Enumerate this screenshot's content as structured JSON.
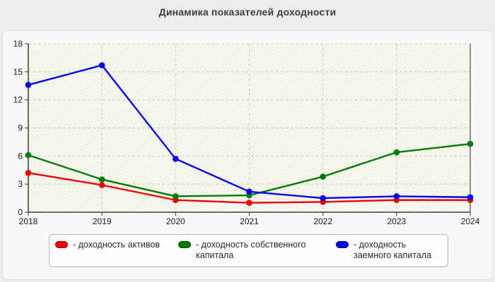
{
  "title": "Динамика показателей доходности",
  "chart_data": {
    "type": "line",
    "x": [
      2018,
      2019,
      2020,
      2021,
      2022,
      2023,
      2024
    ],
    "series": [
      {
        "name": "доходность активов",
        "color": "#ee0000",
        "values": [
          4.2,
          2.9,
          1.3,
          1.0,
          1.1,
          1.3,
          1.3
        ]
      },
      {
        "name": "доходность собственного капитала",
        "color": "#027c02",
        "values": [
          6.1,
          3.5,
          1.7,
          1.8,
          3.8,
          6.4,
          7.3
        ]
      },
      {
        "name": "доходность заемного капитала",
        "color": "#0202ee",
        "values": [
          13.6,
          15.7,
          5.7,
          2.2,
          1.5,
          1.7,
          1.6
        ]
      }
    ],
    "ylim": [
      0,
      18
    ],
    "yticks": [
      0,
      3,
      6,
      9,
      12,
      15,
      18
    ],
    "grid": true,
    "legend_position": "bottom"
  },
  "legend": {
    "items": [
      {
        "label": "- доходность активов",
        "color": "#ee0000"
      },
      {
        "label": "- доходность собственного капитала",
        "color": "#027c02"
      },
      {
        "label": "- доходность заемного капитала",
        "color": "#0202ee"
      }
    ]
  }
}
